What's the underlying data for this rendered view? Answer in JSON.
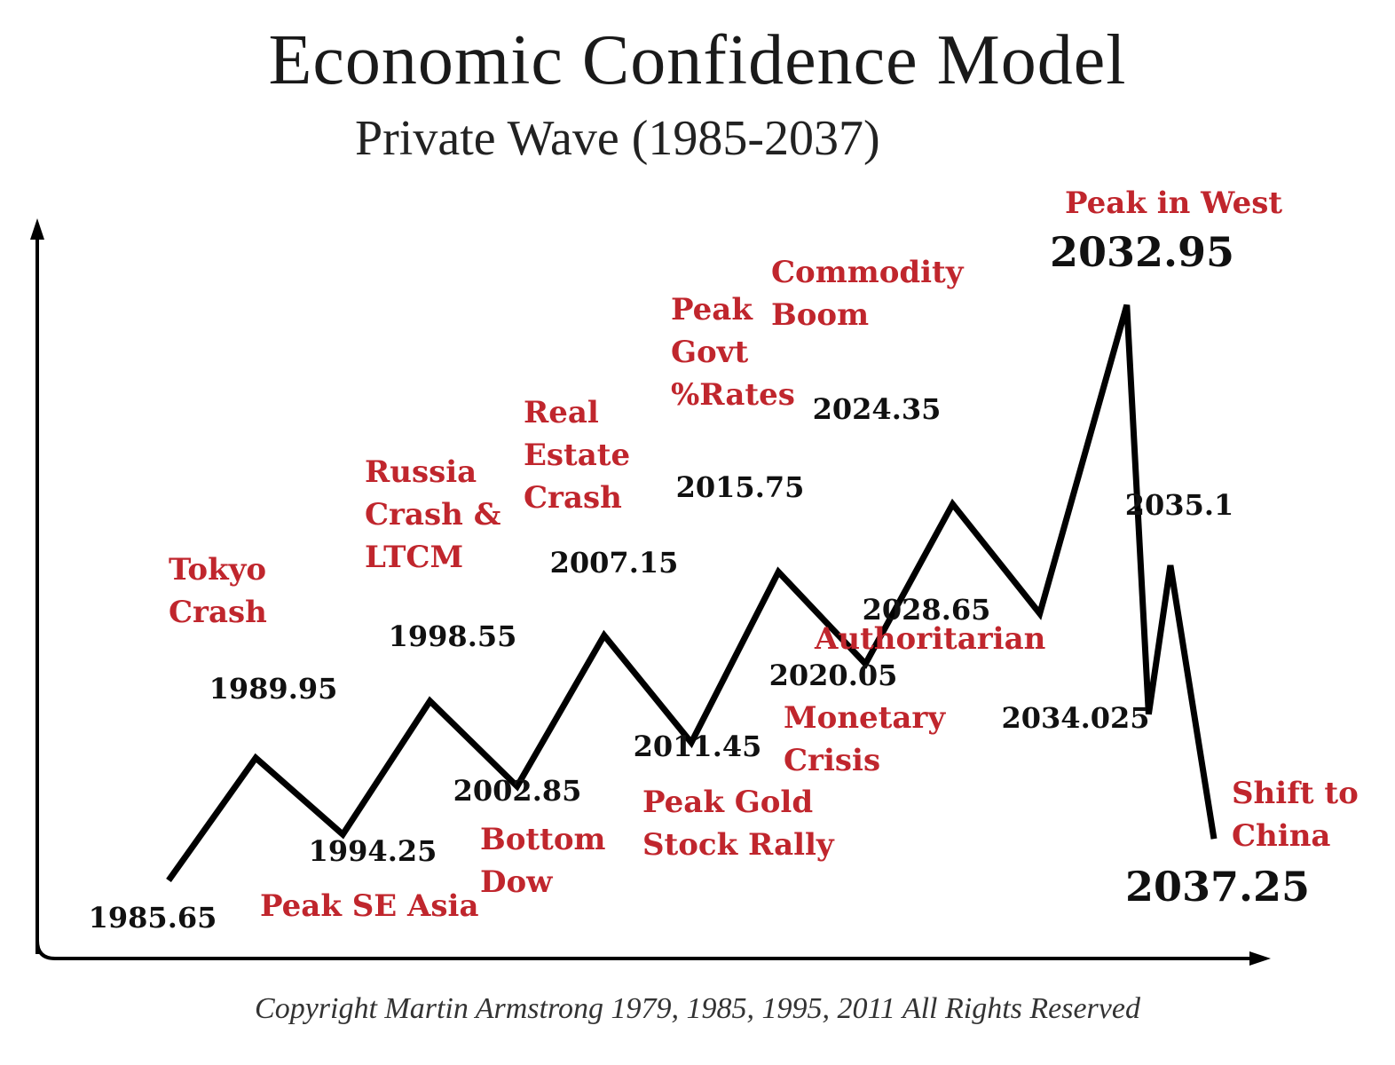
{
  "header": {
    "title": "Economic Confidence Model",
    "subtitle": "Private Wave (1985-2037)"
  },
  "footer": {
    "copyright": "Copyright Martin Armstrong 1979, 1985, 1995, 2011 All Rights Reserved"
  },
  "colors": {
    "line": "#000000",
    "event_text": "#c0262d",
    "point_text": "#111111"
  },
  "chart_data": {
    "type": "line",
    "title": "Economic Confidence Model",
    "subtitle": "Private Wave (1985-2037)",
    "xlabel": "",
    "ylabel": "",
    "grid": false,
    "points": [
      {
        "label": "1985.65",
        "level": 1
      },
      {
        "label": "1989.95",
        "level": 3.8
      },
      {
        "label": "1994.25",
        "level": 2.05
      },
      {
        "label": "1998.55",
        "level": 5.1
      },
      {
        "label": "2002.85",
        "level": 3.15
      },
      {
        "label": "2007.15",
        "level": 6.6
      },
      {
        "label": "2011.45",
        "level": 4.15
      },
      {
        "label": "2015.75",
        "level": 8.05
      },
      {
        "label": "2020.05",
        "level": 5.95
      },
      {
        "label": "2024.35",
        "level": 9.6
      },
      {
        "label": "2028.65",
        "level": 7.1
      },
      {
        "label": "2032.95",
        "level": 14.15
      },
      {
        "label": "2034.025",
        "level": 4.8
      },
      {
        "label": "2035.1",
        "level": 8.2
      },
      {
        "label": "2037.25",
        "level": 1.95
      }
    ],
    "events": [
      {
        "id": "tokyo",
        "lines": [
          "Tokyo",
          "Crash"
        ]
      },
      {
        "id": "se-asia",
        "lines": [
          "Peak SE Asia"
        ]
      },
      {
        "id": "russia",
        "lines": [
          "Russia",
          "Crash &",
          "LTCM"
        ]
      },
      {
        "id": "bottom-dow",
        "lines": [
          "Bottom",
          "Dow"
        ]
      },
      {
        "id": "real-estate",
        "lines": [
          "Real",
          "Estate",
          "Crash"
        ]
      },
      {
        "id": "peak-gold",
        "lines": [
          "Peak Gold",
          "Stock Rally"
        ]
      },
      {
        "id": "peak-govt",
        "lines": [
          "Peak",
          "Govt",
          "%Rates"
        ]
      },
      {
        "id": "monetary",
        "lines": [
          "Monetary",
          "Crisis"
        ]
      },
      {
        "id": "commodity",
        "lines": [
          "Commodity",
          "Boom"
        ]
      },
      {
        "id": "authoritarian",
        "lines": [
          "Authoritarian"
        ]
      },
      {
        "id": "peak-west",
        "lines": [
          "Peak in West"
        ]
      },
      {
        "id": "china",
        "lines": [
          "Shift to",
          "China"
        ]
      }
    ]
  }
}
